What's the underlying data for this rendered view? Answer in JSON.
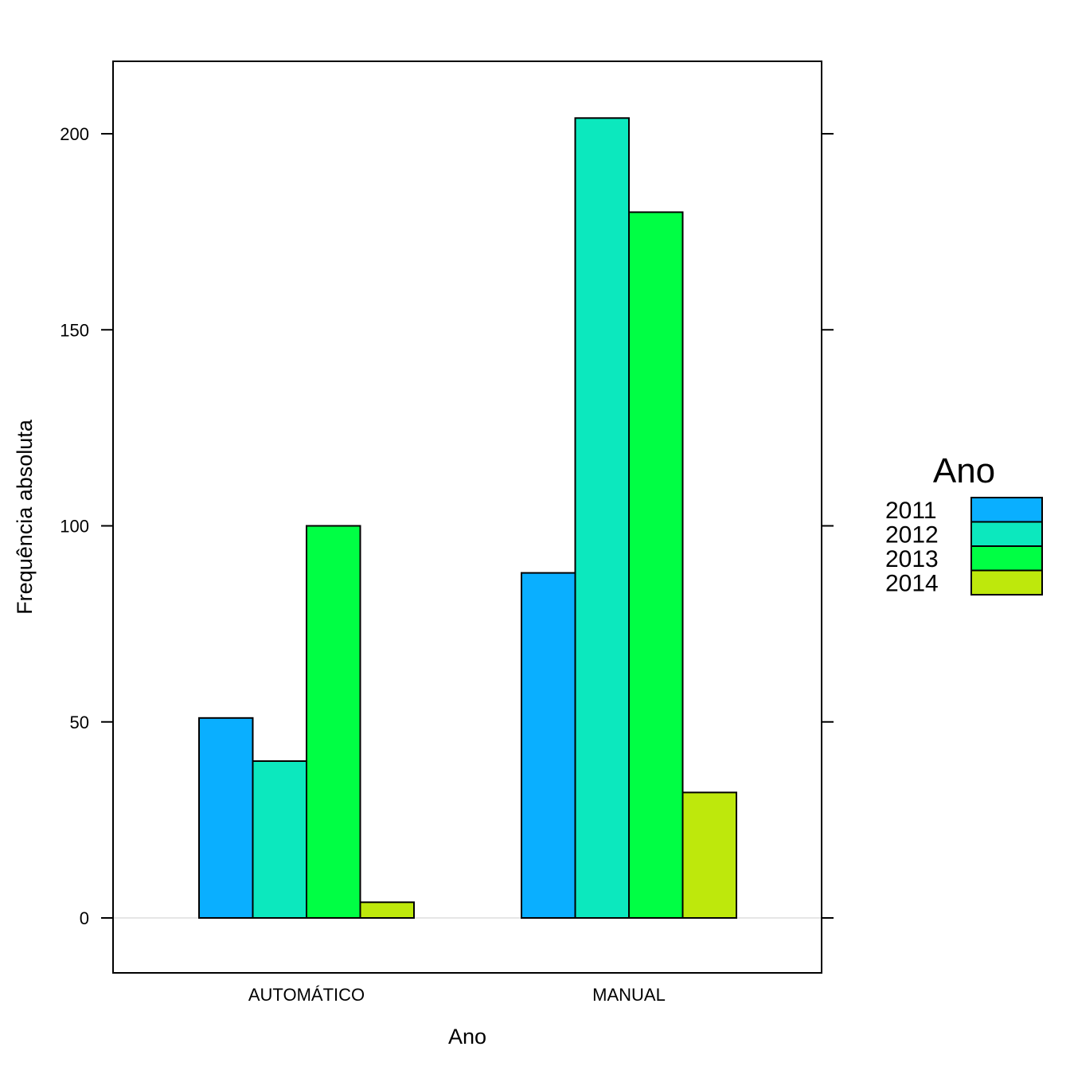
{
  "chart_data": {
    "type": "bar",
    "title": "",
    "xlabel": "Ano",
    "ylabel": "Frequência absoluta",
    "categories": [
      "AUTOMÁTICO",
      "MANUAL"
    ],
    "series": [
      {
        "name": "2011",
        "color": "#0AAFFF",
        "values": [
          51,
          88
        ]
      },
      {
        "name": "2012",
        "color": "#0CE8BE",
        "values": [
          40,
          204
        ]
      },
      {
        "name": "2013",
        "color": "#00FF44",
        "values": [
          100,
          180
        ]
      },
      {
        "name": "2014",
        "color": "#BEE80C",
        "values": [
          4,
          32
        ]
      }
    ],
    "ylim": [
      -14,
      218
    ],
    "yticks": [
      0,
      50,
      100,
      150,
      200
    ],
    "grid": false,
    "legend": {
      "title": "Ano",
      "placement": "right"
    }
  }
}
